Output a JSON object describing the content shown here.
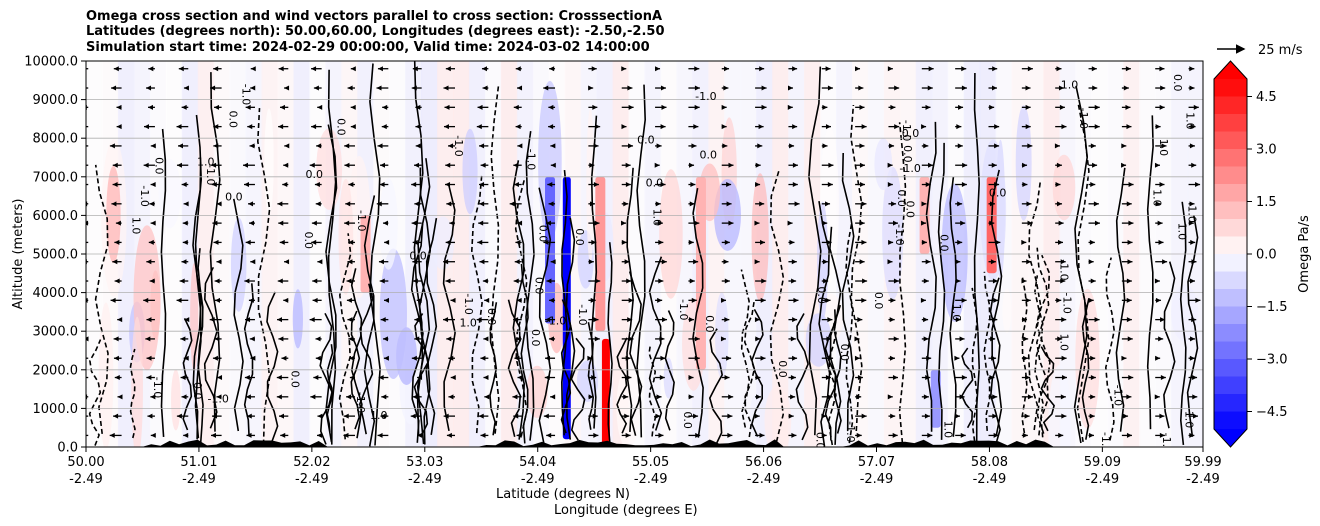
{
  "chart_data": {
    "type": "heatmap",
    "title": [
      "Omega cross section and wind vectors parallel to cross section: CrosssectionA",
      "Latitudes (degrees north): 50.00,60.00, Longitudes (degrees east): -2.50,-2.50",
      "Simulation start time: 2024-02-29 00:00:00, Valid time: 2024-03-02 14:00:00"
    ],
    "xlabel": [
      "Latitude (degrees N)",
      "Longitude (degrees E)"
    ],
    "ylabel": "Altitude (meters)",
    "x_ticks": [
      {
        "lat": "50.00",
        "lon": "-2.49"
      },
      {
        "lat": "51.01",
        "lon": "-2.49"
      },
      {
        "lat": "52.02",
        "lon": "-2.49"
      },
      {
        "lat": "53.03",
        "lon": "-2.49"
      },
      {
        "lat": "54.04",
        "lon": "-2.49"
      },
      {
        "lat": "55.05",
        "lon": "-2.49"
      },
      {
        "lat": "56.06",
        "lon": "-2.49"
      },
      {
        "lat": "57.07",
        "lon": "-2.49"
      },
      {
        "lat": "58.08",
        "lon": "-2.49"
      },
      {
        "lat": "59.09",
        "lon": "-2.49"
      },
      {
        "lat": "59.99",
        "lon": "-2.49"
      }
    ],
    "x_range": [
      50.0,
      59.99
    ],
    "y_ticks": [
      "0.0",
      "1000.0",
      "2000.0",
      "3000.0",
      "4000.0",
      "5000.0",
      "6000.0",
      "7000.0",
      "8000.0",
      "9000.0",
      "10000.0"
    ],
    "y_range": [
      0,
      10000
    ],
    "grid": "horizontal",
    "colorbar": {
      "label": "Omega Pa/s",
      "ticks": [
        "4.5",
        "3.0",
        "1.5",
        "0.0",
        "−1.5",
        "−3.0",
        "−4.5"
      ],
      "range": [
        -5.0,
        5.0
      ],
      "extend": "both",
      "low_color": "#0000ff",
      "high_color": "#ff0000",
      "mid_color": "#ffffff"
    },
    "quiver_key": "25 m/s",
    "contour_labels": [
      "0.0",
      "1.0",
      "-1.0"
    ],
    "strong_features": [
      {
        "lat": 54.3,
        "alt_range": [
          200,
          7000
        ],
        "omega": -5.0
      },
      {
        "lat": 54.65,
        "alt_range": [
          0,
          2800
        ],
        "omega": 5.0
      },
      {
        "lat": 54.6,
        "alt_range": [
          3000,
          7000
        ],
        "omega": 2.0
      },
      {
        "lat": 54.15,
        "alt_range": [
          3200,
          7000
        ],
        "omega": -3.0
      },
      {
        "lat": 52.5,
        "alt_range": [
          4000,
          6000
        ],
        "omega": 1.5
      },
      {
        "lat": 55.5,
        "alt_range": [
          2000,
          7000
        ],
        "omega": 1.5
      },
      {
        "lat": 57.6,
        "alt_range": [
          500,
          2000
        ],
        "omega": -2.0
      },
      {
        "lat": 58.1,
        "alt_range": [
          4500,
          7000
        ],
        "omega": 3.0
      },
      {
        "lat": 57.5,
        "alt_range": [
          5000,
          7000
        ],
        "omega": 1.5
      }
    ]
  }
}
